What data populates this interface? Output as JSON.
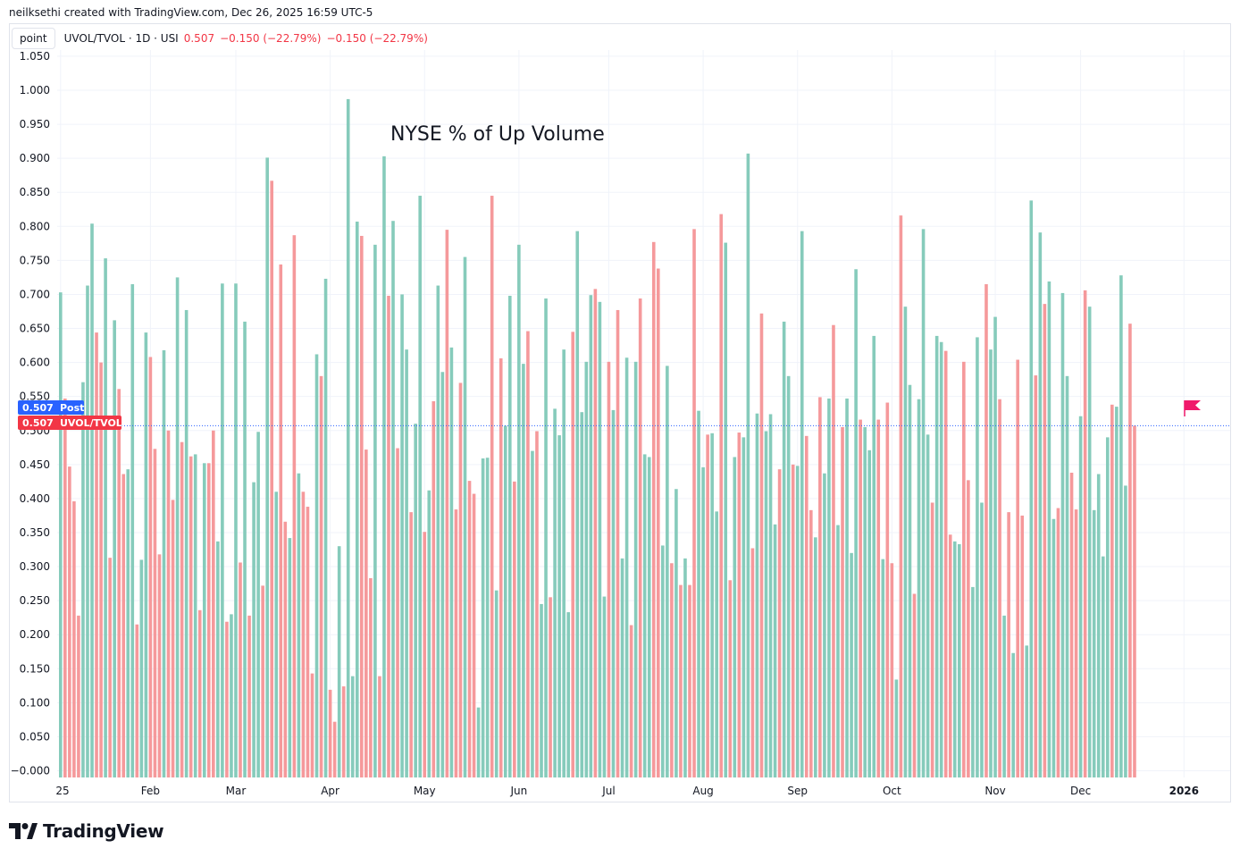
{
  "attribution": "neilksethi created with TradingView.com, Dec 26, 2025 16:59 UTC-5",
  "legend": {
    "unit_badge": "point",
    "symbol": "UVOL/TVOL · 1D · USI",
    "last": "0.507",
    "change": "−0.150 (−22.79%)",
    "change2": "−0.150 (−22.79%)"
  },
  "price_labels": {
    "post_value": "0.507",
    "post_text": "Post",
    "main_value": "0.507",
    "main_text": "UVOL/TVOL"
  },
  "footer": {
    "brand": "TradingView"
  },
  "colors": {
    "up": "#86cbbb",
    "down": "#f5999b",
    "post_badge": "#2962ff",
    "main_badge": "#f23645",
    "flag": "#f0196b"
  },
  "chart_data": {
    "type": "bar",
    "title": "",
    "annotation": "NYSE % of Up Volume",
    "xlabel": "",
    "ylabel": "",
    "ylim": [
      -0.01,
      1.05
    ],
    "y_ticks": [
      -0.0,
      0.05,
      0.1,
      0.15,
      0.2,
      0.25,
      0.3,
      0.35,
      0.4,
      0.45,
      0.5,
      0.55,
      0.6,
      0.65,
      0.7,
      0.75,
      0.8,
      0.85,
      0.9,
      0.95,
      1.0,
      1.05
    ],
    "y_tick_labels": [
      "−0.000",
      "0.050",
      "0.100",
      "0.150",
      "0.200",
      "0.250",
      "0.300",
      "0.350",
      "0.400",
      "0.450",
      "0.500",
      "0.550",
      "0.600",
      "0.650",
      "0.700",
      "0.750",
      "0.800",
      "0.850",
      "0.900",
      "0.950",
      "1.000",
      "1.050"
    ],
    "x_tick_labels": [
      {
        "label": "25",
        "bar_index": 0
      },
      {
        "label": "Feb",
        "bar_index": 20
      },
      {
        "label": "Mar",
        "bar_index": 39
      },
      {
        "label": "Apr",
        "bar_index": 60
      },
      {
        "label": "May",
        "bar_index": 81
      },
      {
        "label": "Jun",
        "bar_index": 102
      },
      {
        "label": "Jul",
        "bar_index": 122
      },
      {
        "label": "Aug",
        "bar_index": 143
      },
      {
        "label": "Sep",
        "bar_index": 164
      },
      {
        "label": "Oct",
        "bar_index": 185
      },
      {
        "label": "Nov",
        "bar_index": 208
      },
      {
        "label": "Dec",
        "bar_index": 227
      },
      {
        "label": "2026",
        "bar_index": 250
      }
    ],
    "last_value": 0.507,
    "values": [
      0.703,
      0.547,
      0.447,
      0.396,
      0.228,
      0.571,
      0.713,
      0.804,
      0.644,
      0.6,
      0.753,
      0.313,
      0.662,
      0.561,
      0.436,
      0.443,
      0.715,
      0.215,
      0.31,
      0.644,
      0.608,
      0.473,
      0.318,
      0.618,
      0.5,
      0.398,
      0.725,
      0.483,
      0.677,
      0.462,
      0.465,
      0.236,
      0.452,
      0.452,
      0.5,
      0.337,
      0.716,
      0.219,
      0.23,
      0.716,
      0.306,
      0.66,
      0.228,
      0.424,
      0.498,
      0.272,
      0.901,
      0.867,
      0.41,
      0.744,
      0.366,
      0.342,
      0.787,
      0.437,
      0.41,
      0.388,
      0.143,
      0.612,
      0.58,
      0.723,
      0.119,
      0.072,
      0.33,
      0.124,
      0.987,
      0.139,
      0.807,
      0.786,
      0.472,
      0.283,
      0.773,
      0.139,
      0.903,
      0.698,
      0.808,
      0.474,
      0.7,
      0.619,
      0.38,
      0.51,
      0.845,
      0.351,
      0.412,
      0.543,
      0.713,
      0.586,
      0.795,
      0.622,
      0.384,
      0.57,
      0.755,
      0.426,
      0.407,
      0.093,
      0.459,
      0.46,
      0.845,
      0.265,
      0.606,
      0.507,
      0.698,
      0.425,
      0.773,
      0.598,
      0.646,
      0.47,
      0.499,
      0.245,
      0.694,
      0.255,
      0.532,
      0.493,
      0.619,
      0.233,
      0.645,
      0.793,
      0.527,
      0.601,
      0.699,
      0.708,
      0.689,
      0.256,
      0.601,
      0.53,
      0.677,
      0.312,
      0.607,
      0.214,
      0.601,
      0.694,
      0.465,
      0.461,
      0.777,
      0.738,
      0.331,
      0.595,
      0.305,
      0.414,
      0.273,
      0.312,
      0.273,
      0.796,
      0.529,
      0.446,
      0.494,
      0.496,
      0.381,
      0.818,
      0.776,
      0.28,
      0.461,
      0.497,
      0.49,
      0.907,
      0.327,
      0.525,
      0.672,
      0.499,
      0.524,
      0.362,
      0.443,
      0.66,
      0.58,
      0.45,
      0.448,
      0.793,
      0.492,
      0.383,
      0.343,
      0.549,
      0.437,
      0.547,
      0.655,
      0.361,
      0.505,
      0.547,
      0.32,
      0.737,
      0.516,
      0.505,
      0.471,
      0.639,
      0.516,
      0.311,
      0.541,
      0.305,
      0.134,
      0.816,
      0.682,
      0.567,
      0.26,
      0.546,
      0.796,
      0.494,
      0.394,
      0.639,
      0.63,
      0.617,
      0.347,
      0.337,
      0.333,
      0.601,
      0.427,
      0.27,
      0.637,
      0.394,
      0.715,
      0.619,
      0.667,
      0.546,
      0.228,
      0.38,
      0.173,
      0.604,
      0.375,
      0.184,
      0.838,
      0.581,
      0.791,
      0.686,
      0.719,
      0.37,
      0.386,
      0.702,
      0.58,
      0.438,
      0.384,
      0.521,
      0.706,
      0.682,
      0.383,
      0.436,
      0.315,
      0.49,
      0.538,
      0.535,
      0.728,
      0.419,
      0.657,
      0.507
    ],
    "directions": "UDDDDUUUDDUDUDDUUDUUDDDUDDUDUDUDUDDUUDUUDUDUUDUDUDDUDUDDDUDUDDUDUUUDDDUDUDUDUUDUUDUDUUDUDDUDDUUUDUDUUDUUDUDUUDUUUUDUUUUDUUDUDUUDUDUUDDUUDUDUDDUUDUUDUDUDUUDUDUUUDUUDUUDDUDUUDUDUUUDUUUDUDDUDUUDUUUDUUDDUUDDUUUDUUDUDUDDUUDUDUUDUUDDUDUUUUUDUUUDDUUUDUUDUDUDD"
  }
}
